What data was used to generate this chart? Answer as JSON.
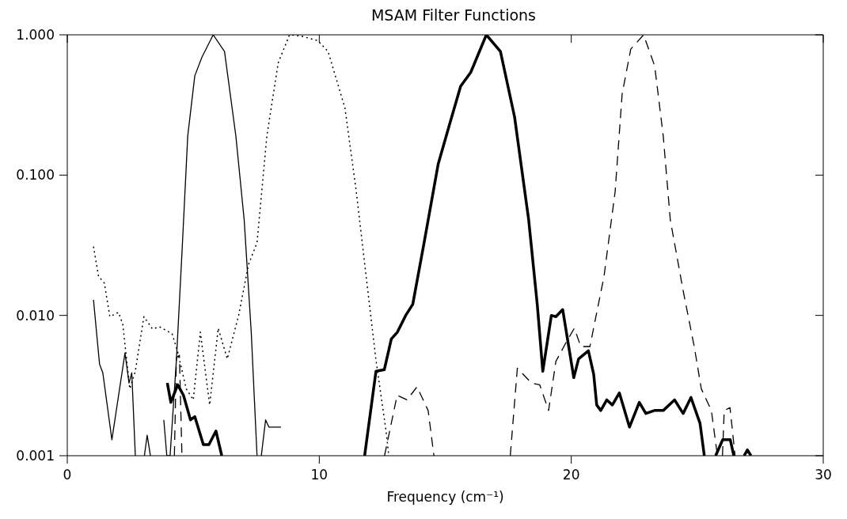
{
  "chart_data": {
    "type": "line",
    "title": "MSAM Filter Functions",
    "xlabel": "Frequency (cm⁻¹)",
    "log": "y",
    "xlim": [
      0,
      30
    ],
    "xticks": [
      0,
      10,
      20,
      30
    ],
    "ylim": [
      0.001,
      1
    ],
    "yticks": [
      {
        "value": 0.001,
        "label": "0.001"
      },
      {
        "value": 0.01,
        "label": "0.010"
      },
      {
        "value": 0.1,
        "label": "0.100"
      },
      {
        "value": 1,
        "label": "1.000"
      }
    ],
    "series": [
      {
        "color": "#000000",
        "line_style": "solid",
        "x": [
          1.04,
          1.28,
          1.41,
          1.77,
          2.29,
          2.45,
          2.56,
          2.7,
          2.8,
          3.06,
          3.17,
          3.3,
          3.6,
          3.83,
          3.95,
          4.08,
          4.33,
          4.56,
          4.78,
          5.06,
          5.34,
          5.79,
          6.24,
          6.69,
          7.02,
          7.3,
          7.53,
          7.6,
          7.7,
          7.87,
          8.0,
          8.15,
          8.48
        ],
        "values": [
          0.0129,
          0.0045,
          0.0039,
          0.0013,
          0.0054,
          0.0033,
          0.0039,
          0.001,
          null,
          0.001,
          0.0014,
          0.001,
          null,
          0.0018,
          0.001,
          0.001,
          0.0048,
          0.03,
          0.19,
          0.51,
          0.69,
          1.0,
          0.76,
          0.19,
          0.048,
          0.0076,
          0.001,
          null,
          0.001,
          0.0018,
          0.0016,
          0.0016,
          0.0016
        ]
      },
      {
        "color": "#000000",
        "line_style": "dotted",
        "x": [
          1.04,
          1.24,
          1.47,
          1.69,
          2.03,
          2.2,
          2.48,
          2.7,
          3.04,
          3.38,
          3.66,
          4.16,
          4.38,
          4.72,
          5.0,
          5.28,
          5.65,
          5.99,
          6.35,
          6.8,
          7.19,
          7.53,
          7.92,
          8.37,
          8.82,
          9.27,
          9.94,
          10.35,
          11.02,
          11.47,
          11.86,
          12.25,
          12.65,
          12.76
        ],
        "values": [
          0.031,
          0.019,
          0.017,
          0.0098,
          0.0105,
          0.0087,
          0.003,
          0.004,
          0.0098,
          0.008,
          0.0083,
          0.0074,
          0.0055,
          0.003,
          0.0025,
          0.0076,
          0.0023,
          0.0081,
          0.0049,
          0.01,
          0.023,
          0.033,
          0.19,
          0.63,
          1.0,
          0.98,
          0.91,
          0.76,
          0.3,
          0.076,
          0.019,
          0.0048,
          0.0015,
          0.001
        ]
      },
      {
        "color": "#000000",
        "line_style": "solid",
        "x": [
          3.97,
          4.11,
          4.38,
          4.61,
          4.89,
          5.06,
          5.4,
          5.62,
          5.9,
          6.13,
          9,
          11.8,
          12.25,
          12.58,
          12.86,
          13.1,
          13.43,
          13.71,
          14.16,
          14.72,
          15.17,
          15.61,
          16.01,
          16.63,
          17.19,
          17.75,
          18.31,
          18.65,
          18.87,
          19.21,
          19.39,
          19.66,
          20.1,
          20.29,
          20.68,
          20.89,
          21.01,
          21.17,
          21.41,
          21.63,
          21.91,
          22.31,
          22.7,
          22.96,
          23.3,
          23.65,
          24.1,
          24.44,
          24.75,
          25.11,
          25.28,
          25.5,
          25.73,
          26.01,
          26.31,
          26.45,
          26.6,
          26.86,
          26.99,
          27.13
        ],
        "values": [
          0.0033,
          0.0024,
          0.0032,
          0.0027,
          0.0018,
          0.0019,
          0.0012,
          0.0012,
          0.0015,
          0.001,
          null,
          0.001,
          0.004,
          0.0041,
          0.0068,
          0.0076,
          0.01,
          0.012,
          0.033,
          0.12,
          0.23,
          0.43,
          0.54,
          1.0,
          0.76,
          0.26,
          0.048,
          0.012,
          0.004,
          0.01,
          0.0098,
          0.011,
          0.0036,
          0.0049,
          0.0056,
          0.0038,
          0.0023,
          0.0021,
          0.0025,
          0.0023,
          0.0028,
          0.0016,
          0.0024,
          0.002,
          0.0021,
          0.0021,
          0.0025,
          0.002,
          0.0026,
          0.0017,
          0.001,
          null,
          0.001,
          0.0013,
          0.0013,
          0.001,
          null,
          0.001,
          0.0011,
          0.001
        ]
      },
      {
        "color": "#000000",
        "line_style": "dashed",
        "x": [
          4.25,
          4.33,
          4.45,
          4.55,
          5,
          12.59,
          13.09,
          13.48,
          13.88,
          14.32,
          14.55,
          15.0,
          17.58,
          17.86,
          18.42,
          18.75,
          19.1,
          19.39,
          19.77,
          20.12,
          20.38,
          20.74,
          21.3,
          21.74,
          22.02,
          22.36,
          22.87,
          23.31,
          23.65,
          23.93,
          24.44,
          24.88,
          25.16,
          25.56,
          25.8,
          25.9,
          26.0,
          26.07,
          26.3,
          26.5
        ],
        "values": [
          0.001,
          0.005,
          0.0052,
          0.001,
          null,
          0.001,
          0.0027,
          0.0025,
          0.0031,
          0.0021,
          0.001,
          null,
          0.001,
          0.0042,
          0.0033,
          0.0032,
          0.0021,
          0.0047,
          0.0063,
          0.0081,
          0.006,
          0.006,
          0.019,
          0.076,
          0.38,
          0.79,
          1.0,
          0.6,
          0.19,
          0.048,
          0.015,
          0.006,
          0.003,
          0.0021,
          0.001,
          null,
          0.001,
          0.0021,
          0.0022,
          0.001
        ]
      }
    ]
  }
}
